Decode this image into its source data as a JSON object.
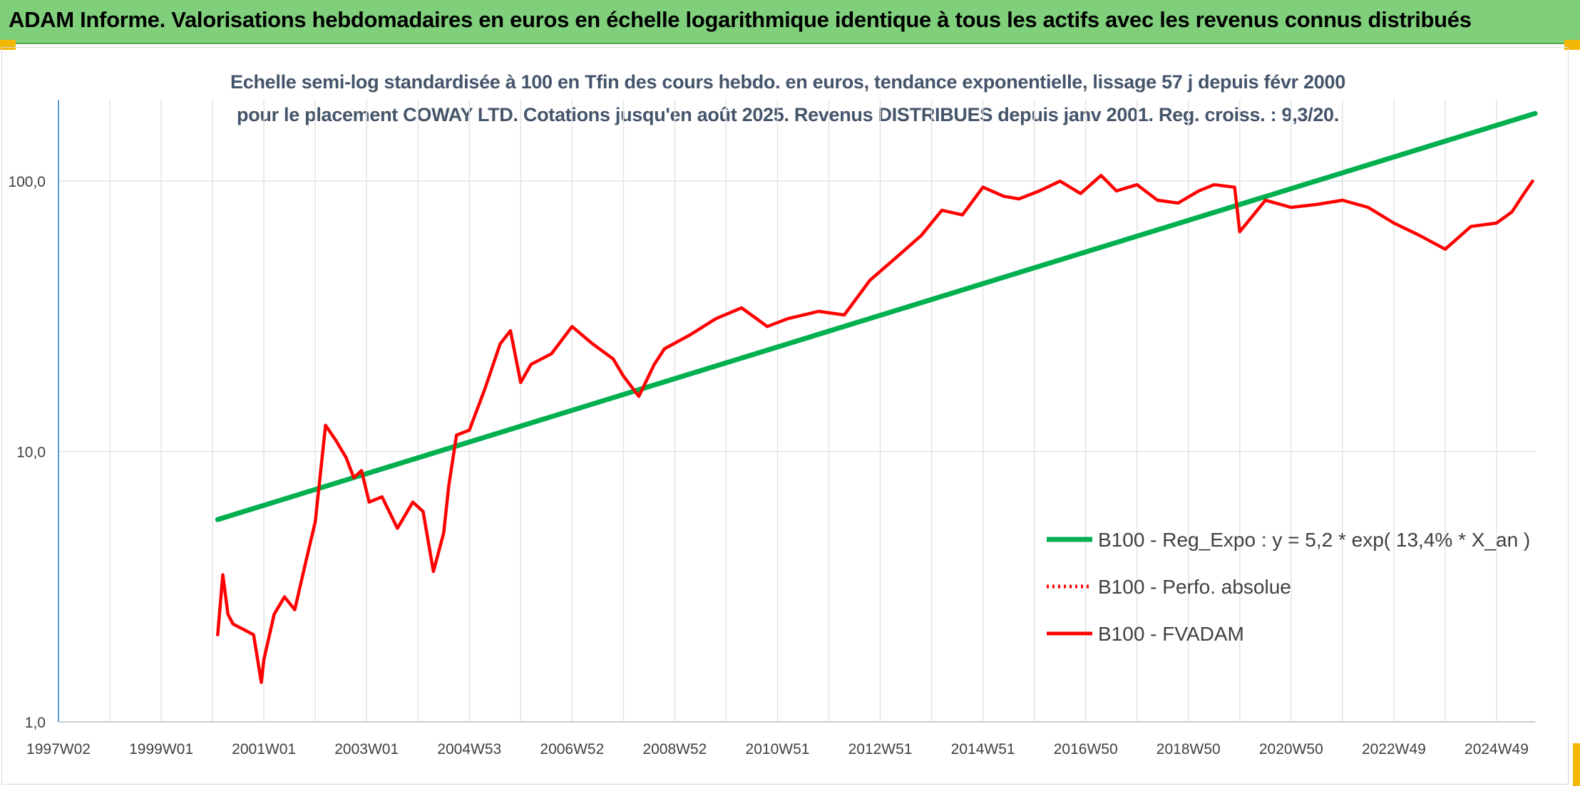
{
  "banner": {
    "title": "ADAM Informe. Valorisations hebdomadaires en euros en échelle logarithmique identique à tous les actifs avec les revenus connus distribués"
  },
  "chart_data": {
    "type": "line",
    "title": "Echelle semi-log standardisée à 100 en Tfin des cours hebdo. en euros, tendance exponentielle, lissage 57 j depuis févr 2000 pour le placement COWAY LTD. Cotations jusqu'en août 2025. Revenus DISTRIBUES depuis janv 2001. Reg. croiss. : 9,3/20.",
    "y_scale": "log",
    "ylim": [
      1,
      200
    ],
    "y_ticks": [
      1,
      10,
      100
    ],
    "y_tick_labels": [
      "1,0",
      "10,0",
      "100,0"
    ],
    "x_range": [
      1997.0,
      2025.75
    ],
    "x_ticks": [
      1997.0,
      1999.0,
      2001.0,
      2003.0,
      2005.0,
      2007.0,
      2009.0,
      2011.0,
      2013.0,
      2015.0,
      2017.0,
      2019.0,
      2021.0,
      2023.0,
      2025.0
    ],
    "x_tick_labels": [
      "1997W02",
      "1999W01",
      "2001W01",
      "2003W01",
      "2004W53",
      "2006W52",
      "2008W52",
      "2010W51",
      "2012W51",
      "2014W51",
      "2016W50",
      "2018W50",
      "2020W50",
      "2022W49",
      "2024W49"
    ],
    "grid": "vertical and horizontal",
    "legend_position": "right",
    "series": [
      {
        "name": "B100 - Reg_Expo : y = 5,2 * exp( 13,4% *  X_an )",
        "color": "#00b050",
        "style": "solid",
        "x": [
          2000.1,
          2025.75
        ],
        "y": [
          5.6,
          178
        ]
      },
      {
        "name": "B100 - Perfo. absolue",
        "color": "#ff0000",
        "style": "dotted",
        "x": [],
        "y": []
      },
      {
        "name": "B100 - FVADAM",
        "color": "#ff0000",
        "style": "solid",
        "x": [
          2000.1,
          2000.2,
          2000.3,
          2000.4,
          2000.6,
          2000.8,
          2000.95,
          2001.0,
          2001.2,
          2001.4,
          2001.6,
          2001.8,
          2002.0,
          2002.2,
          2002.4,
          2002.6,
          2002.75,
          2002.9,
          2003.05,
          2003.3,
          2003.6,
          2003.9,
          2004.1,
          2004.3,
          2004.5,
          2004.6,
          2004.75,
          2005.0,
          2005.3,
          2005.6,
          2005.8,
          2006.0,
          2006.2,
          2006.6,
          2007.0,
          2007.4,
          2007.8,
          2008.0,
          2008.3,
          2008.6,
          2008.8,
          2009.3,
          2009.8,
          2010.3,
          2010.8,
          2011.2,
          2011.8,
          2012.3,
          2012.8,
          2013.3,
          2013.8,
          2014.2,
          2014.6,
          2015.0,
          2015.4,
          2015.7,
          2016.1,
          2016.5,
          2016.9,
          2017.3,
          2017.6,
          2018.0,
          2018.4,
          2018.8,
          2019.2,
          2019.5,
          2019.9,
          2020.0,
          2020.5,
          2021.0,
          2021.5,
          2022.0,
          2022.5,
          2023.0,
          2023.5,
          2024.0,
          2024.5,
          2025.0,
          2025.3,
          2025.5,
          2025.7
        ],
        "y": [
          2.1,
          3.5,
          2.5,
          2.3,
          2.2,
          2.1,
          1.4,
          1.7,
          2.5,
          2.9,
          2.6,
          3.8,
          5.5,
          12.5,
          11.0,
          9.5,
          8.0,
          8.5,
          6.5,
          6.8,
          5.2,
          6.5,
          6.0,
          3.6,
          5.0,
          7.5,
          11.5,
          12.0,
          17.0,
          25.0,
          28.0,
          18.0,
          21.0,
          23.0,
          29.0,
          25.0,
          22.0,
          19.0,
          16.0,
          21.0,
          24.0,
          27.0,
          31.0,
          34.0,
          29.0,
          31.0,
          33.0,
          32.0,
          43.0,
          52.0,
          63.0,
          78.0,
          75.0,
          95.0,
          88.0,
          86.0,
          92.0,
          100.0,
          90.0,
          105.0,
          92.0,
          97.0,
          85.0,
          83.0,
          92.0,
          97.0,
          95.0,
          65.0,
          85.0,
          80.0,
          82.0,
          85.0,
          80.0,
          70.0,
          63.0,
          56.0,
          68.0,
          70.0,
          77.0,
          88.0,
          100.0
        ]
      }
    ]
  }
}
